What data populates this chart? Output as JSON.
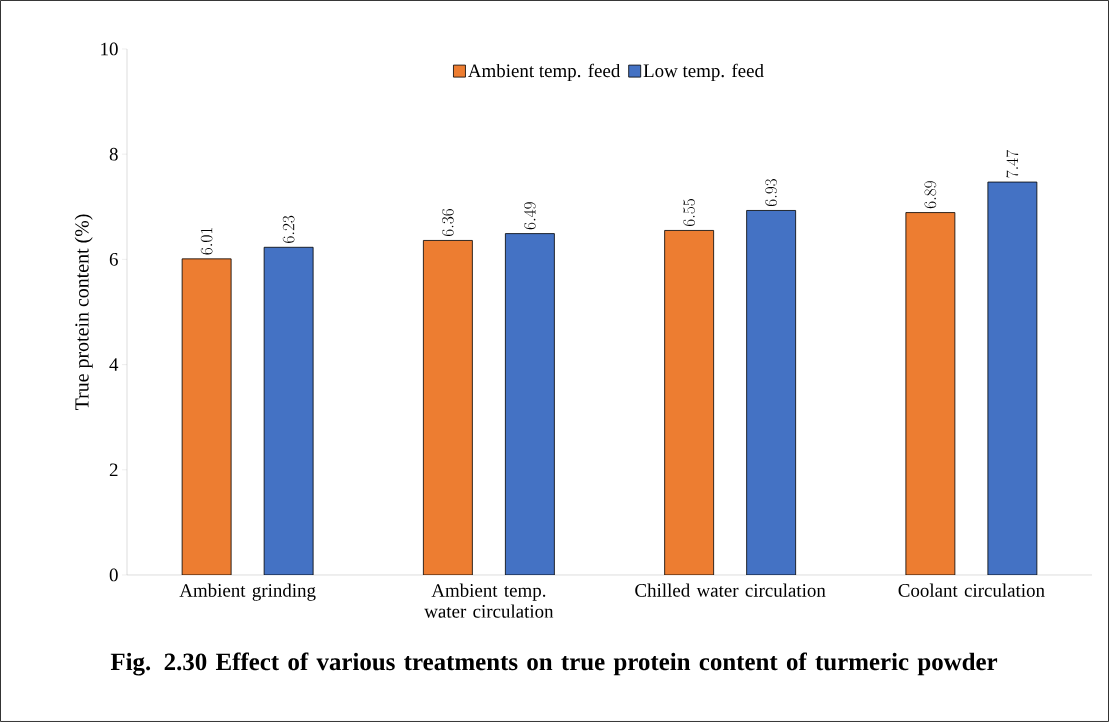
{
  "chart_data": {
    "type": "bar",
    "title": "Fig. 2.30 Effect of various treatments on true protein content of turmeric powder",
    "ylabel": "True protein content (%)",
    "categories": [
      "Ambient grinding",
      "Ambient temp. water circulation",
      "Chilled water circulation",
      "Coolant circulation"
    ],
    "series": [
      {
        "name": "Ambient temp. feed",
        "color": "#ed7d31",
        "values": [
          6.01,
          6.36,
          6.55,
          6.89
        ]
      },
      {
        "name": "Low temp. feed",
        "color": "#4472c4",
        "values": [
          6.23,
          6.49,
          6.93,
          7.47
        ]
      }
    ],
    "ylim": [
      0,
      10
    ],
    "yticks": [
      0,
      2,
      4,
      6,
      8,
      10
    ],
    "data_labels": true,
    "legend": "top",
    "grid": false
  }
}
